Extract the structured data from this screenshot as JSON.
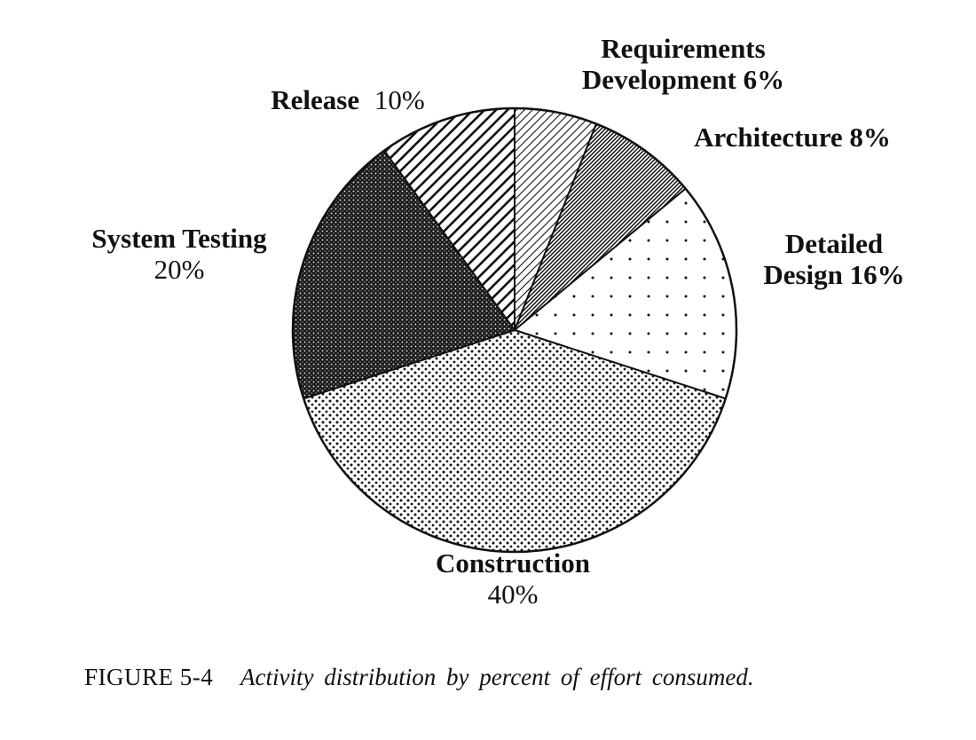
{
  "figure": {
    "caption_label": "FIGURE 5-4",
    "caption_text": "Activity distribution by percent of effort consumed."
  },
  "chart_data": {
    "type": "pie",
    "title": "Activity distribution by percent of effort consumed.",
    "unit": "%",
    "total": 100,
    "start_angle_deg": 0,
    "direction": "clockwise",
    "legend": "none",
    "ink_color": "#111111",
    "background": "#ffffff",
    "slices": [
      {
        "label": "Requirements Development",
        "value": 6,
        "pattern": "hatch-thin",
        "display_lines": [
          "Requirements",
          "Development 6%"
        ]
      },
      {
        "label": "Architecture",
        "value": 8,
        "pattern": "hatch-dense",
        "display_lines": [
          "Architecture 8%"
        ]
      },
      {
        "label": "Detailed Design",
        "value": 16,
        "pattern": "dots-sparse",
        "display_lines": [
          "Detailed",
          "Design 16%"
        ]
      },
      {
        "label": "Construction",
        "value": 40,
        "pattern": "dots-dense",
        "display_lines": [
          "Construction",
          "40%"
        ]
      },
      {
        "label": "System Testing",
        "value": 20,
        "pattern": "weave-dark",
        "display_lines": [
          "System Testing",
          "20%"
        ]
      },
      {
        "label": "Release",
        "value": 10,
        "pattern": "stripes-wide",
        "display_lines": [
          "Release",
          "10%"
        ]
      }
    ]
  }
}
